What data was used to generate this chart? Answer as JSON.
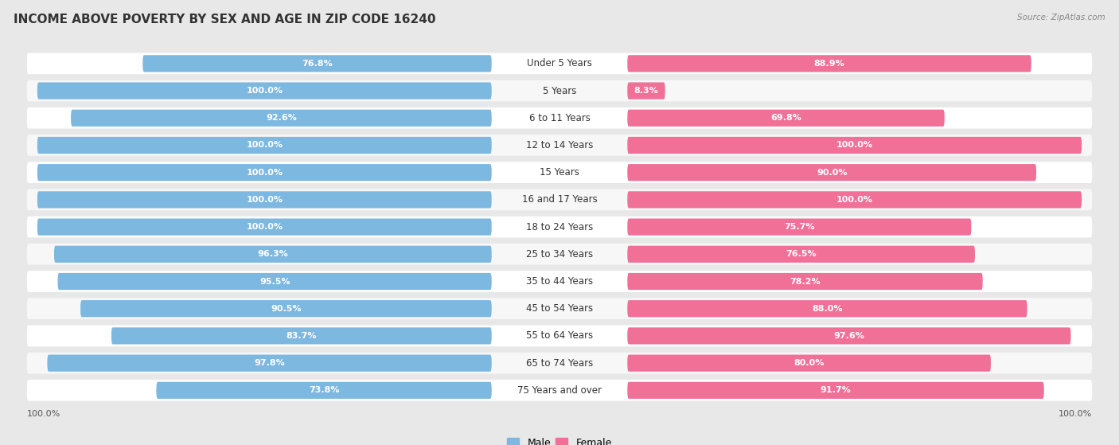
{
  "title": "INCOME ABOVE POVERTY BY SEX AND AGE IN ZIP CODE 16240",
  "source": "Source: ZipAtlas.com",
  "categories": [
    "Under 5 Years",
    "5 Years",
    "6 to 11 Years",
    "12 to 14 Years",
    "15 Years",
    "16 and 17 Years",
    "18 to 24 Years",
    "25 to 34 Years",
    "35 to 44 Years",
    "45 to 54 Years",
    "55 to 64 Years",
    "65 to 74 Years",
    "75 Years and over"
  ],
  "male_values": [
    76.8,
    100.0,
    92.6,
    100.0,
    100.0,
    100.0,
    100.0,
    96.3,
    95.5,
    90.5,
    83.7,
    97.8,
    73.8
  ],
  "female_values": [
    88.9,
    8.3,
    69.8,
    100.0,
    90.0,
    100.0,
    75.7,
    76.5,
    78.2,
    88.0,
    97.6,
    80.0,
    91.7
  ],
  "male_color": "#7db8e0",
  "female_color": "#f07098",
  "male_light_color": "#c5dff2",
  "female_light_color": "#f9c0d0",
  "row_bg_odd": "#f7f7f7",
  "row_bg_even": "#ffffff",
  "outer_bg": "#e8e8e8",
  "title_fontsize": 11,
  "label_fontsize": 8.5,
  "value_fontsize": 8,
  "axis_label_fontsize": 8
}
